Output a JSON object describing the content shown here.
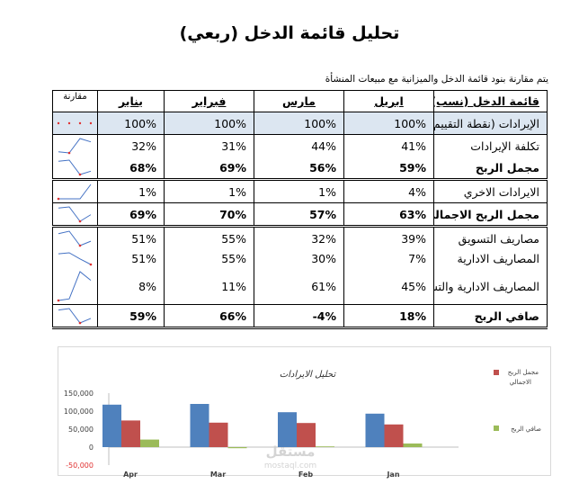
{
  "title": "تحليل قائمة الدخل (ربعي)",
  "subtitle": "يتم مقارنة بنود قائمة الدخل والميزانية مع مبيعات المنشأة",
  "table": {
    "headers": {
      "label": "قائمة الدخل (نسب)",
      "apr": "ابريل",
      "mar": "مارس",
      "feb": "فبراير",
      "jan": "يناير",
      "compare": "مقارنة"
    },
    "rows": [
      {
        "label": "الإيرادات (نقطة التقييم)",
        "apr": "100%",
        "mar": "100%",
        "feb": "100%",
        "jan": "100%",
        "nums": [
          100,
          100,
          100,
          100
        ],
        "style": "shade"
      },
      {
        "label": "تكلفة الإيرادات",
        "apr": "41%",
        "mar": "44%",
        "feb": "31%",
        "jan": "32%",
        "nums": [
          41,
          44,
          31,
          32
        ],
        "style": "plain"
      },
      {
        "label": "مجمل الربح",
        "apr": "59%",
        "mar": "56%",
        "feb": "69%",
        "jan": "68%",
        "nums": [
          59,
          56,
          69,
          68
        ],
        "style": "bold"
      },
      {
        "label": "الايرادات الاخري",
        "apr": "4%",
        "mar": "1%",
        "feb": "1%",
        "jan": "1%",
        "nums": [
          4,
          1,
          1,
          1
        ],
        "style": "plain"
      },
      {
        "label": "مجمل الربح الاجمالي",
        "apr": "63%",
        "mar": "57%",
        "feb": "70%",
        "jan": "69%",
        "nums": [
          63,
          57,
          70,
          69
        ],
        "style": "bold"
      },
      {
        "label": "مصاريف التسويق",
        "apr": "39%",
        "mar": "32%",
        "feb": "55%",
        "jan": "51%",
        "nums": [
          39,
          32,
          55,
          51
        ],
        "style": "plain"
      },
      {
        "label": "المصاريف الادارية",
        "apr": "7%",
        "mar": "30%",
        "feb": "55%",
        "jan": "51%",
        "nums": [
          7,
          30,
          55,
          51
        ],
        "style": "plain"
      },
      {
        "label": "المصاريف الادارية والتسويقية",
        "apr": "45%",
        "mar": "61%",
        "feb": "11%",
        "jan": "8%",
        "nums": [
          45,
          61,
          11,
          8
        ],
        "style": "plain"
      },
      {
        "label": "صافي الربح",
        "apr": "18%",
        "mar": "-4%",
        "feb": "66%",
        "jan": "59%",
        "nums": [
          18,
          -4,
          66,
          59
        ],
        "style": "bold"
      }
    ]
  },
  "colors": {
    "gross_profit_total": "#4f81bd",
    "net_profit": "#9bbb59",
    "third_series": "#c0504d",
    "shade": "#dce6f1",
    "sparkline": "#4472c4",
    "marker": "#e03030"
  },
  "chart_data": {
    "type": "bar",
    "title": "تحليل الايرادات",
    "categories": [
      "Apr",
      "Mar",
      "Feb",
      "Jan"
    ],
    "series": [
      {
        "name": "",
        "values": [
          118000,
          120000,
          97000,
          93000
        ]
      },
      {
        "name": "مجمل الربح الاجمالي",
        "values": [
          74000,
          68000,
          67000,
          63000
        ]
      },
      {
        "name": "صافي الربح",
        "values": [
          21000,
          -3000,
          2000,
          10000
        ]
      }
    ],
    "y_ticks": [
      "150,000",
      "100,000",
      "50,000",
      "0",
      "-50,000"
    ],
    "y_tick_values": [
      150000,
      100000,
      50000,
      0,
      -50000
    ],
    "ylim": [
      -50000,
      150000
    ],
    "grid": false,
    "legend": "right"
  },
  "watermark": {
    "brand": "مستقل",
    "url": "mostaql.com"
  }
}
